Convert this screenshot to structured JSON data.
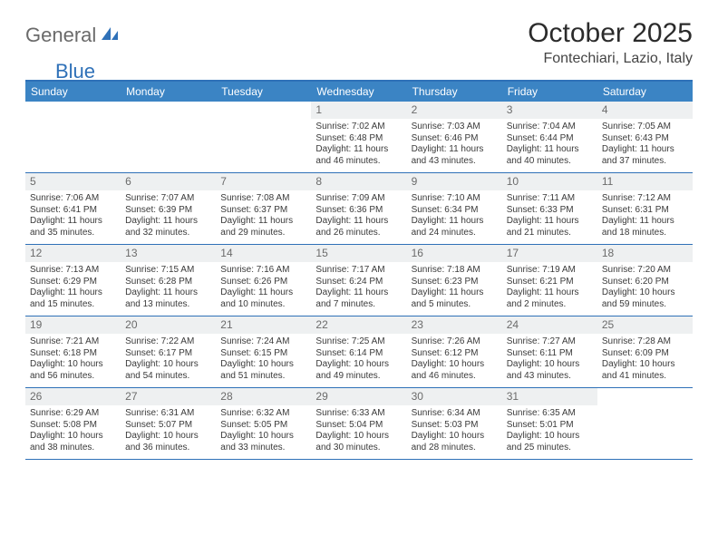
{
  "logo": {
    "part1": "General",
    "part2": "Blue"
  },
  "title": "October 2025",
  "location": "Fontechiari, Lazio, Italy",
  "colors": {
    "header_bg": "#3b84c4",
    "border": "#2f71b8",
    "daynum_bg": "#eef0f1",
    "text": "#3a3a3a",
    "logo_gray": "#6a6a6a",
    "logo_blue": "#2f71b8"
  },
  "dayHeaders": [
    "Sunday",
    "Monday",
    "Tuesday",
    "Wednesday",
    "Thursday",
    "Friday",
    "Saturday"
  ],
  "weeks": [
    [
      {
        "empty": true
      },
      {
        "empty": true
      },
      {
        "empty": true
      },
      {
        "day": "1",
        "sunrise": "7:02 AM",
        "sunset": "6:48 PM",
        "daylight": "11 hours and 46 minutes."
      },
      {
        "day": "2",
        "sunrise": "7:03 AM",
        "sunset": "6:46 PM",
        "daylight": "11 hours and 43 minutes."
      },
      {
        "day": "3",
        "sunrise": "7:04 AM",
        "sunset": "6:44 PM",
        "daylight": "11 hours and 40 minutes."
      },
      {
        "day": "4",
        "sunrise": "7:05 AM",
        "sunset": "6:43 PM",
        "daylight": "11 hours and 37 minutes."
      }
    ],
    [
      {
        "day": "5",
        "sunrise": "7:06 AM",
        "sunset": "6:41 PM",
        "daylight": "11 hours and 35 minutes."
      },
      {
        "day": "6",
        "sunrise": "7:07 AM",
        "sunset": "6:39 PM",
        "daylight": "11 hours and 32 minutes."
      },
      {
        "day": "7",
        "sunrise": "7:08 AM",
        "sunset": "6:37 PM",
        "daylight": "11 hours and 29 minutes."
      },
      {
        "day": "8",
        "sunrise": "7:09 AM",
        "sunset": "6:36 PM",
        "daylight": "11 hours and 26 minutes."
      },
      {
        "day": "9",
        "sunrise": "7:10 AM",
        "sunset": "6:34 PM",
        "daylight": "11 hours and 24 minutes."
      },
      {
        "day": "10",
        "sunrise": "7:11 AM",
        "sunset": "6:33 PM",
        "daylight": "11 hours and 21 minutes."
      },
      {
        "day": "11",
        "sunrise": "7:12 AM",
        "sunset": "6:31 PM",
        "daylight": "11 hours and 18 minutes."
      }
    ],
    [
      {
        "day": "12",
        "sunrise": "7:13 AM",
        "sunset": "6:29 PM",
        "daylight": "11 hours and 15 minutes."
      },
      {
        "day": "13",
        "sunrise": "7:15 AM",
        "sunset": "6:28 PM",
        "daylight": "11 hours and 13 minutes."
      },
      {
        "day": "14",
        "sunrise": "7:16 AM",
        "sunset": "6:26 PM",
        "daylight": "11 hours and 10 minutes."
      },
      {
        "day": "15",
        "sunrise": "7:17 AM",
        "sunset": "6:24 PM",
        "daylight": "11 hours and 7 minutes."
      },
      {
        "day": "16",
        "sunrise": "7:18 AM",
        "sunset": "6:23 PM",
        "daylight": "11 hours and 5 minutes."
      },
      {
        "day": "17",
        "sunrise": "7:19 AM",
        "sunset": "6:21 PM",
        "daylight": "11 hours and 2 minutes."
      },
      {
        "day": "18",
        "sunrise": "7:20 AM",
        "sunset": "6:20 PM",
        "daylight": "10 hours and 59 minutes."
      }
    ],
    [
      {
        "day": "19",
        "sunrise": "7:21 AM",
        "sunset": "6:18 PM",
        "daylight": "10 hours and 56 minutes."
      },
      {
        "day": "20",
        "sunrise": "7:22 AM",
        "sunset": "6:17 PM",
        "daylight": "10 hours and 54 minutes."
      },
      {
        "day": "21",
        "sunrise": "7:24 AM",
        "sunset": "6:15 PM",
        "daylight": "10 hours and 51 minutes."
      },
      {
        "day": "22",
        "sunrise": "7:25 AM",
        "sunset": "6:14 PM",
        "daylight": "10 hours and 49 minutes."
      },
      {
        "day": "23",
        "sunrise": "7:26 AM",
        "sunset": "6:12 PM",
        "daylight": "10 hours and 46 minutes."
      },
      {
        "day": "24",
        "sunrise": "7:27 AM",
        "sunset": "6:11 PM",
        "daylight": "10 hours and 43 minutes."
      },
      {
        "day": "25",
        "sunrise": "7:28 AM",
        "sunset": "6:09 PM",
        "daylight": "10 hours and 41 minutes."
      }
    ],
    [
      {
        "day": "26",
        "sunrise": "6:29 AM",
        "sunset": "5:08 PM",
        "daylight": "10 hours and 38 minutes."
      },
      {
        "day": "27",
        "sunrise": "6:31 AM",
        "sunset": "5:07 PM",
        "daylight": "10 hours and 36 minutes."
      },
      {
        "day": "28",
        "sunrise": "6:32 AM",
        "sunset": "5:05 PM",
        "daylight": "10 hours and 33 minutes."
      },
      {
        "day": "29",
        "sunrise": "6:33 AM",
        "sunset": "5:04 PM",
        "daylight": "10 hours and 30 minutes."
      },
      {
        "day": "30",
        "sunrise": "6:34 AM",
        "sunset": "5:03 PM",
        "daylight": "10 hours and 28 minutes."
      },
      {
        "day": "31",
        "sunrise": "6:35 AM",
        "sunset": "5:01 PM",
        "daylight": "10 hours and 25 minutes."
      },
      {
        "empty": true
      }
    ]
  ],
  "labels": {
    "sunrise": "Sunrise:",
    "sunset": "Sunset:",
    "daylight": "Daylight:"
  }
}
